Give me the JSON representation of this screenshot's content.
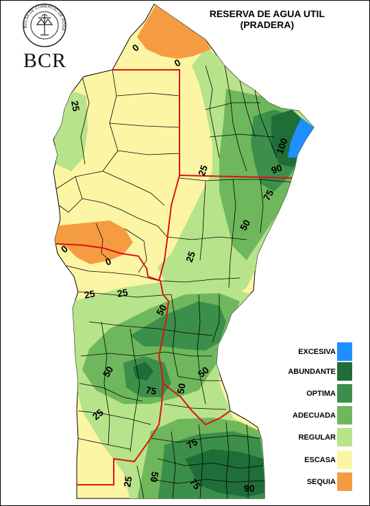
{
  "title": {
    "line1": "RESERVA DE AGUA UTIL",
    "line2": "(PRADERA)"
  },
  "logo": {
    "acronym": "BCR",
    "seal_text": "BOLSA DE COMERCIO DE ROSARIO"
  },
  "colors": {
    "excesiva": "#1e90ff",
    "abundante": "#1f6e38",
    "optima": "#3c8f4a",
    "adecuada": "#6fb75c",
    "regular": "#b7e38a",
    "escasa": "#fbf5a4",
    "sequia": "#f59c42",
    "province_border": "#dd1111",
    "district_border": "#000000"
  },
  "legend": [
    {
      "label": "EXCESIVA",
      "color": "#1e90ff"
    },
    {
      "label": "ABUNDANTE",
      "color": "#1f6e38"
    },
    {
      "label": "OPTIMA",
      "color": "#3c8f4a"
    },
    {
      "label": "ADECUADA",
      "color": "#6fb75c"
    },
    {
      "label": "REGULAR",
      "color": "#b7e38a"
    },
    {
      "label": "ESCASA",
      "color": "#fbf5a4"
    },
    {
      "label": "SEQUIA",
      "color": "#f59c42"
    }
  ],
  "contour_labels": {
    "c1": "0",
    "c2": "0",
    "c3": "25",
    "c4": "100",
    "c5": "90",
    "c6": "75",
    "c7": "25",
    "c8": "50",
    "c9": "0",
    "c10": "0",
    "c11": "25",
    "c12": "25",
    "c13": "25",
    "c14": "50",
    "c15": "50",
    "c16": "50",
    "c17": "75",
    "c18": "50",
    "c19": "25",
    "c20": "75",
    "c21": "25",
    "c22": "50",
    "c23": "75",
    "c24": "90"
  }
}
